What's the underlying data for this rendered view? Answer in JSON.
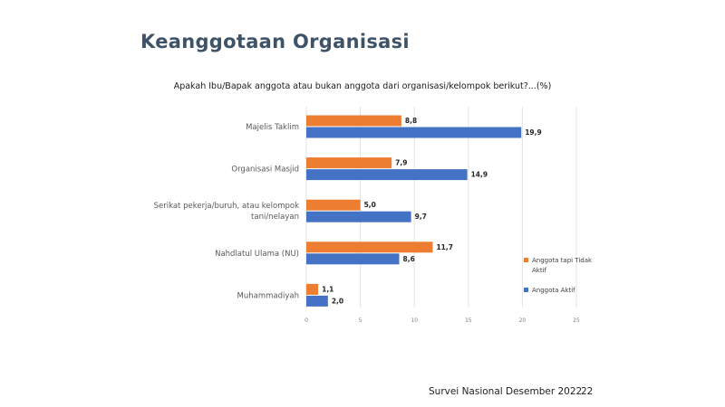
{
  "slide": {
    "title": "Keanggotaan Organisasi",
    "footer": "Survei Nasional Desember 2022",
    "page_number": "22"
  },
  "chart_data": {
    "type": "bar",
    "orientation": "horizontal",
    "title": "Apakah Ibu/Bapak anggota atau bukan anggota dari organisasi/kelompok berikut?...(%)",
    "categories": [
      [
        "Majelis Taklim"
      ],
      [
        "Organisasi Masjid"
      ],
      [
        "Serikat pekerja/buruh, atau kelompok",
        "tani/nelayan"
      ],
      [
        "Nahdlatul Ulama (NU)"
      ],
      [
        "Muhammadiyah"
      ]
    ],
    "series": [
      {
        "name": [
          "Anggota tapi Tidak",
          "Aktif"
        ],
        "color": "#ed7d31",
        "values": [
          8.8,
          7.9,
          5.0,
          11.7,
          1.1
        ],
        "labels": [
          "8,8",
          "7,9",
          "5,0",
          "11,7",
          "1,1"
        ]
      },
      {
        "name": [
          "Anggota Aktif"
        ],
        "color": "#4472c4",
        "values": [
          19.9,
          14.9,
          9.7,
          8.6,
          2.0
        ],
        "labels": [
          "19,9",
          "14,9",
          "9,7",
          "8,6",
          "2,0"
        ]
      }
    ],
    "xlim": [
      0,
      25
    ],
    "xticks": [
      0,
      5,
      10,
      15,
      20,
      25
    ],
    "xtick_labels": [
      "0",
      "5",
      "10",
      "15",
      "20",
      "25"
    ],
    "grid": true,
    "legend_position": "right"
  }
}
